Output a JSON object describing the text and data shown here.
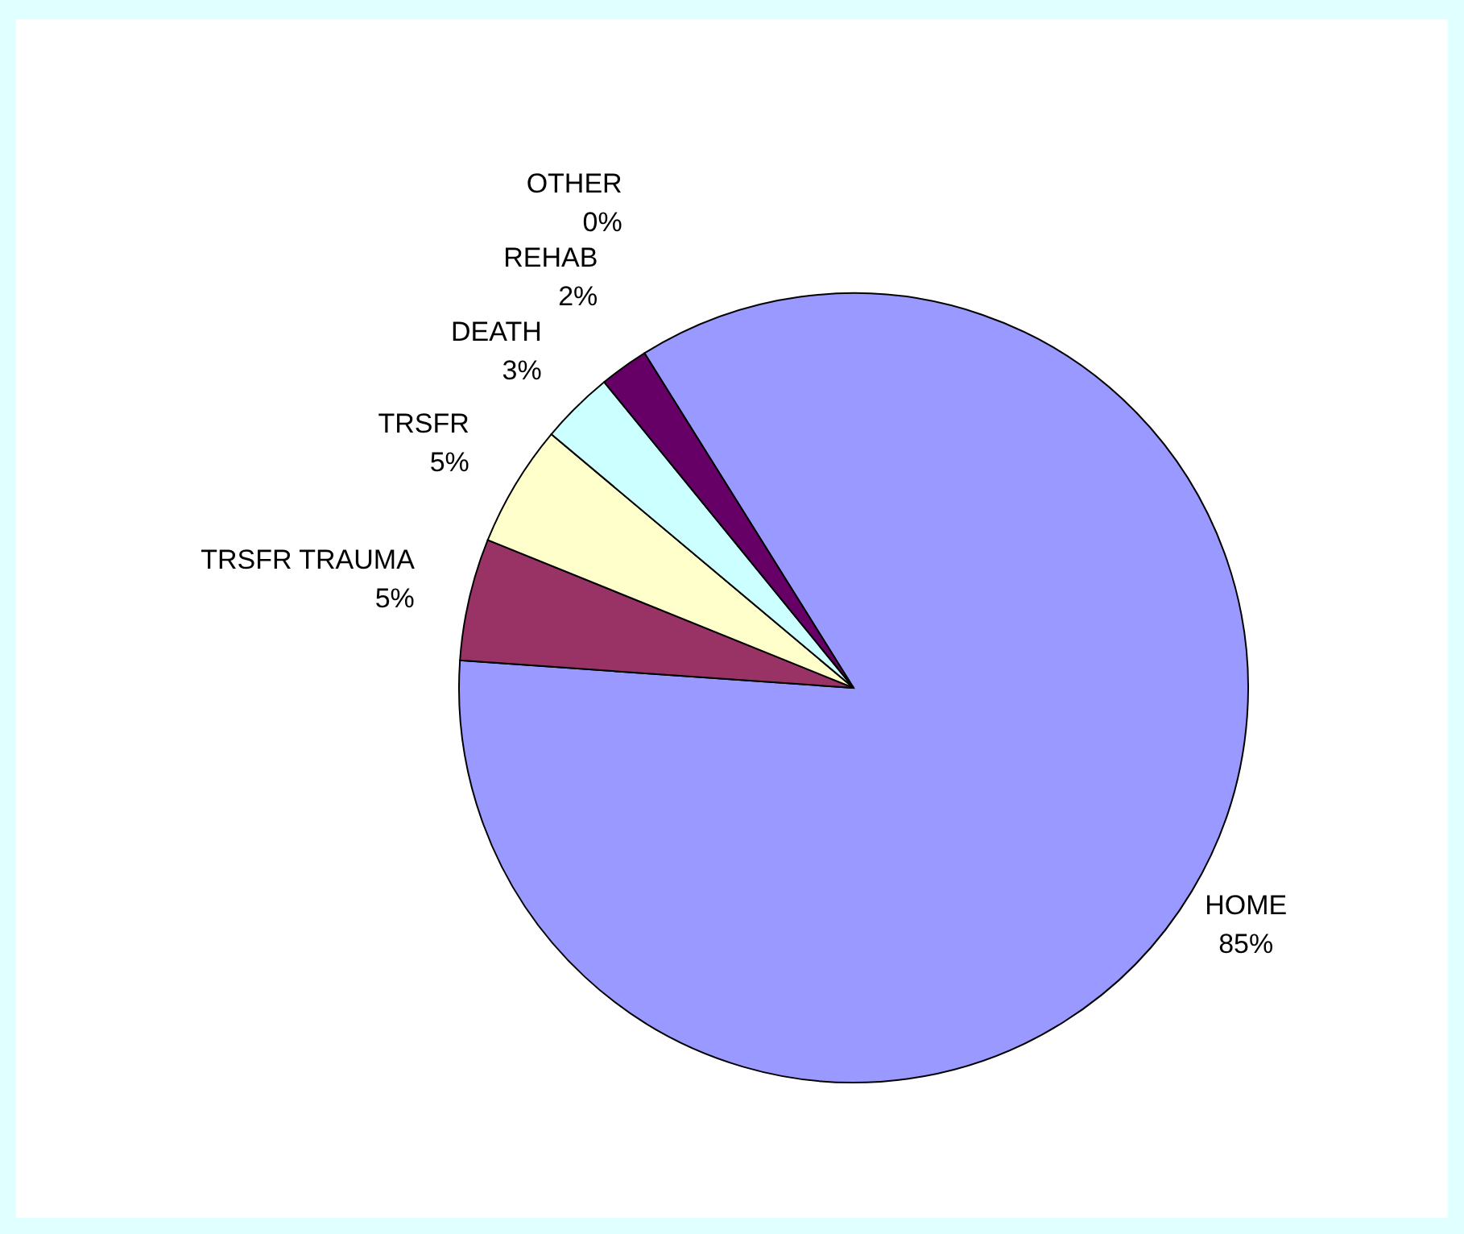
{
  "chart_data": {
    "type": "pie",
    "categories": [
      "HOME",
      "TRSFR TRAUMA",
      "TRSFR",
      "DEATH",
      "REHAB",
      "OTHER"
    ],
    "values": [
      85,
      5,
      5,
      3,
      2,
      0
    ],
    "value_labels": [
      "85%",
      "5%",
      "5%",
      "3%",
      "2%",
      "0%"
    ],
    "colors": [
      "#9999ff",
      "#993366",
      "#ffffcc",
      "#ccffff",
      "#660066",
      "#ff8080"
    ]
  }
}
